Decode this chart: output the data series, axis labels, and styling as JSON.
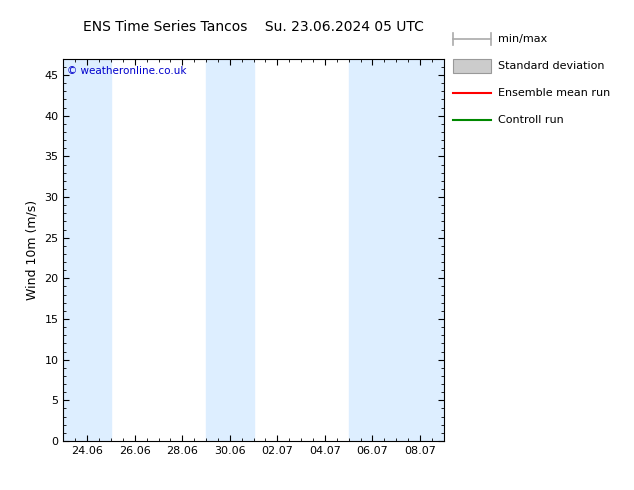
{
  "title_left": "ENS Time Series Tancos",
  "title_right": "Su. 23.06.2024 05 UTC",
  "ylabel": "Wind 10m (m/s)",
  "ylim": [
    0,
    47
  ],
  "yticks": [
    0,
    5,
    10,
    15,
    20,
    25,
    30,
    35,
    40,
    45
  ],
  "background_color": "#ffffff",
  "band_color": "#ddeeff",
  "watermark": "© weatheronline.co.uk",
  "watermark_color": "#0000cc",
  "legend_items": [
    "min/max",
    "Standard deviation",
    "Ensemble mean run",
    "Controll run"
  ],
  "x_tick_labels": [
    "24.06",
    "26.06",
    "28.06",
    "30.06",
    "02.07",
    "04.07",
    "06.07",
    "08.07"
  ],
  "x_tick_positions": [
    1,
    3,
    5,
    7,
    9,
    11,
    13,
    15
  ],
  "band_ranges": [
    [
      0,
      2
    ],
    [
      6,
      8
    ],
    [
      12,
      14
    ],
    [
      14,
      16
    ]
  ],
  "total_days": 16,
  "figsize": [
    6.34,
    4.9
  ],
  "dpi": 100
}
